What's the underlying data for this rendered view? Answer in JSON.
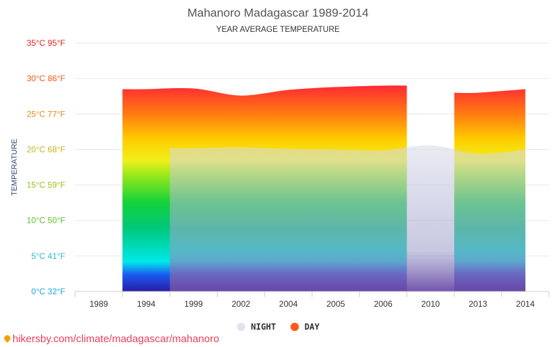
{
  "chart_data": {
    "type": "area",
    "title": "Mahanoro Madagascar 1989-2014",
    "subtitle": "YEAR AVERAGE TEMPERATURE",
    "ylabel": "TEMPERATURE",
    "xlabel": "",
    "categories": [
      "1989",
      "1994",
      "1999",
      "2002",
      "2004",
      "2005",
      "2006",
      "2010",
      "2013",
      "2014"
    ],
    "ylim": [
      0,
      35
    ],
    "yticks": [
      {
        "value": 0,
        "label": "0°C 32°F",
        "color": "#1aa6d6"
      },
      {
        "value": 5,
        "label": "5°C 41°F",
        "color": "#2ab9c9"
      },
      {
        "value": 10,
        "label": "10°C 50°F",
        "color": "#5cbf2a"
      },
      {
        "value": 15,
        "label": "15°C 59°F",
        "color": "#9abf1a"
      },
      {
        "value": 20,
        "label": "20°C 68°F",
        "color": "#c9b21a"
      },
      {
        "value": 25,
        "label": "25°C 77°F",
        "color": "#e68a1a"
      },
      {
        "value": 30,
        "label": "30°C 86°F",
        "color": "#ee5a1a"
      },
      {
        "value": 35,
        "label": "35°C 95°F",
        "color": "#e8201a"
      }
    ],
    "series": [
      {
        "name": "NIGHT",
        "color": "#e1e3ef",
        "values": [
          null,
          null,
          20.2,
          20.3,
          20.1,
          20.0,
          19.9,
          20.6,
          19.4,
          20.0
        ]
      },
      {
        "name": "DAY",
        "color": "#ff5a1a",
        "values": [
          null,
          28.5,
          28.6,
          27.6,
          28.4,
          28.8,
          29.0,
          null,
          28.0,
          28.5
        ]
      }
    ],
    "grid": true,
    "legend_position": "bottom-center"
  },
  "source": {
    "text": "hikersby.com/climate/madagascar/mahanoro"
  }
}
